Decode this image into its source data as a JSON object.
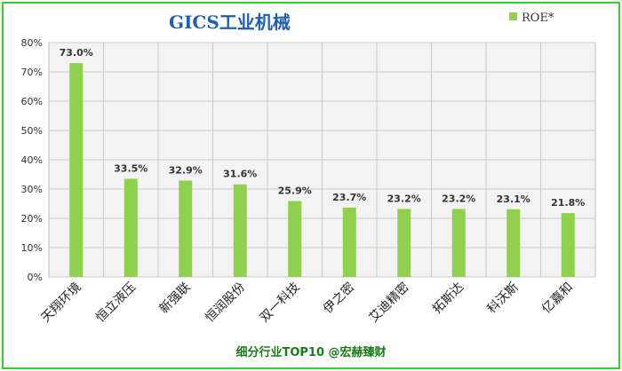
{
  "chart_data": {
    "type": "bar",
    "title": "GICS工业机械",
    "footer": "细分行业TOP10 @宏赫臻财",
    "legend": {
      "label": "ROE*",
      "position": "top-right"
    },
    "categories": [
      "天翔环境",
      "恒立液压",
      "新强联",
      "恒润股份",
      "双一科技",
      "伊之密",
      "艾迪精密",
      "拓斯达",
      "科沃斯",
      "亿嘉和"
    ],
    "series": [
      {
        "name": "ROE*",
        "values": [
          73.0,
          33.5,
          32.9,
          31.6,
          25.9,
          23.7,
          23.2,
          23.2,
          23.1,
          21.8
        ]
      }
    ],
    "data_labels": [
      "73.0%",
      "33.5%",
      "32.9%",
      "31.6%",
      "25.9%",
      "23.7%",
      "23.2%",
      "23.2%",
      "23.1%",
      "21.8%"
    ],
    "yticks": [
      "0%",
      "10%",
      "20%",
      "30%",
      "40%",
      "50%",
      "60%",
      "70%",
      "80%"
    ],
    "ylim": [
      0,
      80
    ],
    "grid": true,
    "bar_color": "#8fd14f"
  }
}
